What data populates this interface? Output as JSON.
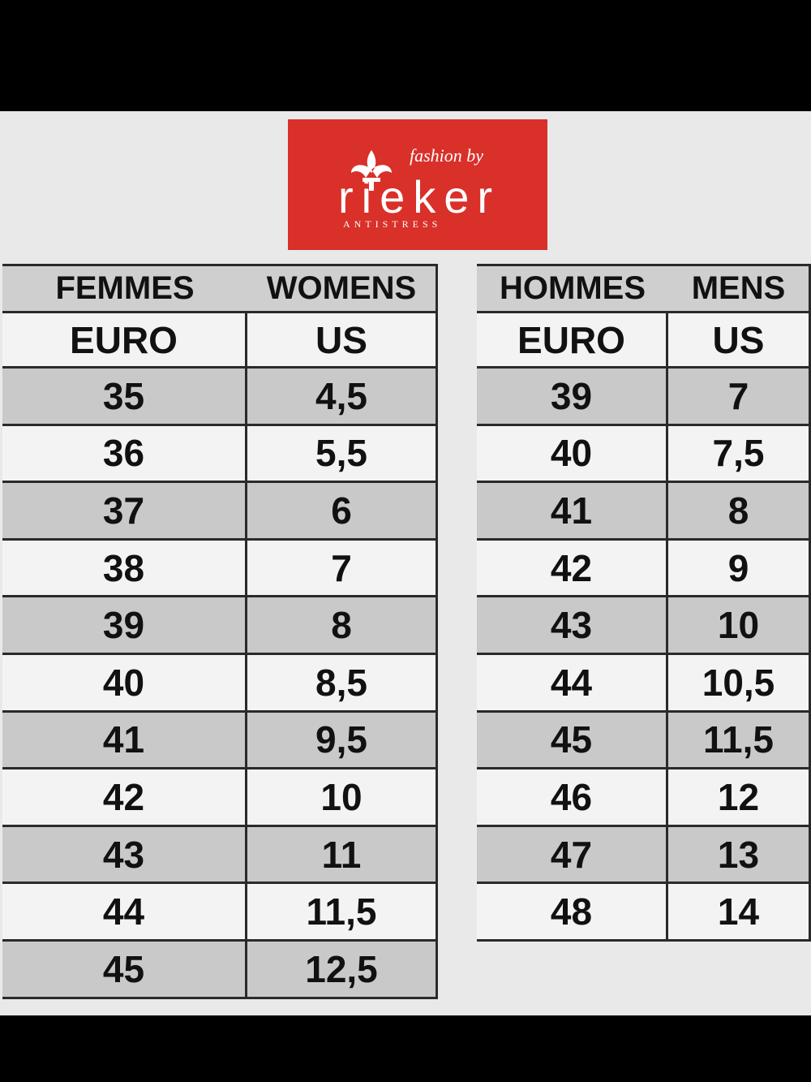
{
  "logo": {
    "tagline": "fashion by",
    "brand": "rieker",
    "subbrand": "ANTISTRESS"
  },
  "tables": [
    {
      "header": [
        "FEMMES",
        "WOMENS"
      ],
      "columns": [
        "EURO",
        "US"
      ],
      "rows": [
        [
          "35",
          "4,5"
        ],
        [
          "36",
          "5,5"
        ],
        [
          "37",
          "6"
        ],
        [
          "38",
          "7"
        ],
        [
          "39",
          "8"
        ],
        [
          "40",
          "8,5"
        ],
        [
          "41",
          "9,5"
        ],
        [
          "42",
          "10"
        ],
        [
          "43",
          "11"
        ],
        [
          "44",
          "11,5"
        ],
        [
          "45",
          "12,5"
        ]
      ]
    },
    {
      "header": [
        "HOMMES",
        "MENS"
      ],
      "columns": [
        "EURO",
        "US"
      ],
      "rows": [
        [
          "39",
          "7"
        ],
        [
          "40",
          "7,5"
        ],
        [
          "41",
          "8"
        ],
        [
          "42",
          "9"
        ],
        [
          "43",
          "10"
        ],
        [
          "44",
          "10,5"
        ],
        [
          "45",
          "11,5"
        ],
        [
          "46",
          "12"
        ],
        [
          "47",
          "13"
        ],
        [
          "48",
          "14"
        ]
      ]
    }
  ]
}
